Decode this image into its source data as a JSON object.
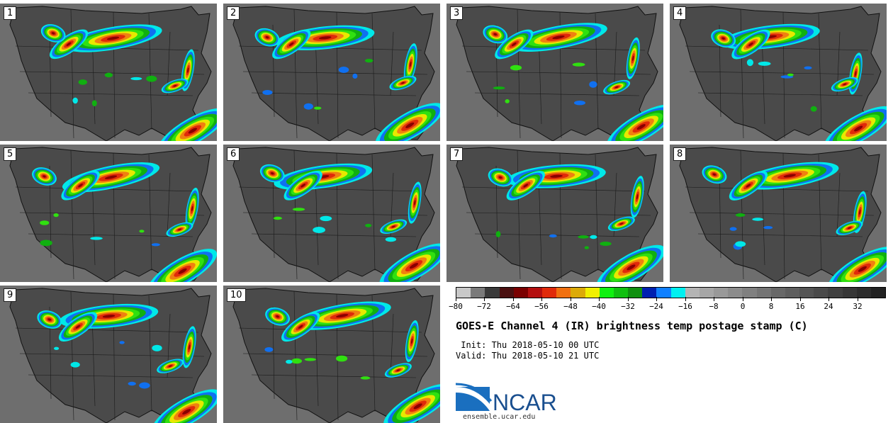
{
  "product": {
    "title": "GOES-E Channel 4 (IR) brightness temp postage stamp (C)",
    "init": " Init: Thu 2018-05-10 00 UTC",
    "valid": "Valid: Thu 2018-05-10 21 UTC"
  },
  "members": [
    {
      "label": "1"
    },
    {
      "label": "2"
    },
    {
      "label": "3"
    },
    {
      "label": "4"
    },
    {
      "label": "5"
    },
    {
      "label": "6"
    },
    {
      "label": "7"
    },
    {
      "label": "8"
    },
    {
      "label": "9"
    },
    {
      "label": "10"
    }
  ],
  "colorbar": {
    "min": -80,
    "max": 40,
    "tick_values": [
      -80,
      -72,
      -64,
      -56,
      -48,
      -40,
      -32,
      -24,
      -16,
      -8,
      0,
      8,
      16,
      24,
      32
    ],
    "tick_labels": [
      "−80",
      "−72",
      "−64",
      "−56",
      "−48",
      "−40",
      "−32",
      "−24",
      "−16",
      "−8",
      "0",
      "8",
      "16",
      "24",
      "32"
    ],
    "colors": [
      "#c8c8c8",
      "#7a7a7a",
      "#3a3a3a",
      "#4a1010",
      "#7a0000",
      "#b40f0f",
      "#e02a0a",
      "#f07010",
      "#dcaa08",
      "#f0f000",
      "#10f010",
      "#10c010",
      "#109010",
      "#0020b0",
      "#1080ff",
      "#00f0f0",
      "#b4b4b4",
      "#a6a6a6",
      "#999999",
      "#8c8c8c",
      "#808080",
      "#747474",
      "#686868",
      "#5e5e5e",
      "#545454",
      "#4a4a4a",
      "#404040",
      "#363636",
      "#2c2c2c",
      "#222222"
    ]
  },
  "logo": {
    "text": "NCAR",
    "url": "ensemble.ucar.edu"
  },
  "colors": {
    "ocean": "#6e6e6e",
    "land": "#4a4a4a",
    "borders": "#111111"
  }
}
